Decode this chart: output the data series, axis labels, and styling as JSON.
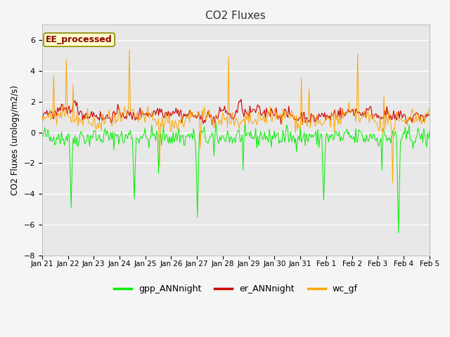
{
  "title": "CO2 Fluxes",
  "ylabel": "CO2 Fluxes (urology/m2/s)",
  "ylim": [
    -8,
    7
  ],
  "yticks": [
    -8,
    -6,
    -4,
    -2,
    0,
    2,
    4,
    6
  ],
  "fig_bg_color": "#f5f5f5",
  "plot_bg_color": "#e8e8e8",
  "line_colors": {
    "gpp": "#00ee00",
    "er": "#cc0000",
    "wc": "#ffa500"
  },
  "legend_labels": [
    "gpp_ANNnight",
    "er_ANNnight",
    "wc_gf"
  ],
  "annotation_text": "EE_processed",
  "annotation_color": "#8b0000",
  "annotation_bg": "#ffffcc",
  "annotation_edge": "#8b8b00",
  "x_tick_labels": [
    "Jan 21",
    "Jan 22",
    "Jan 23",
    "Jan 24",
    "Jan 25",
    "Jan 26",
    "Jan 27",
    "Jan 28",
    "Jan 29",
    "Jan 30",
    "Jan 31",
    "Feb 1",
    "Feb 2",
    "Feb 3",
    "Feb 4",
    "Feb 5"
  ],
  "n_points": 400,
  "seed": 42
}
